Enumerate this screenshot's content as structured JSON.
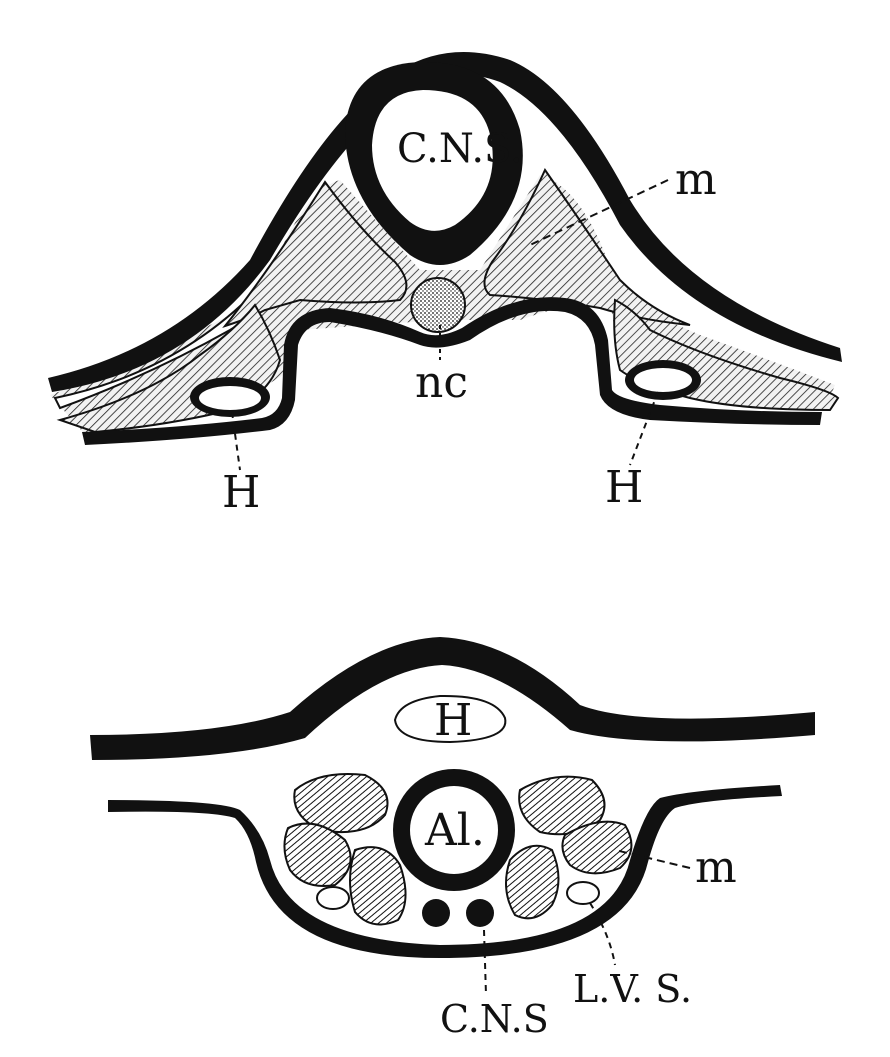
{
  "colors": {
    "ink": "#111111",
    "paper": "#ffffff",
    "muscle_fill": "#e2e2e2"
  },
  "top_section": {
    "labels": {
      "cns": "C.N.S.",
      "m": "m",
      "nc": "nc",
      "h_left": "H",
      "h_right": "H"
    }
  },
  "bottom_section": {
    "labels": {
      "h": "H",
      "al": "Al.",
      "m": "m",
      "lvs": "L.V. S.",
      "cns": "C.N.S"
    }
  }
}
